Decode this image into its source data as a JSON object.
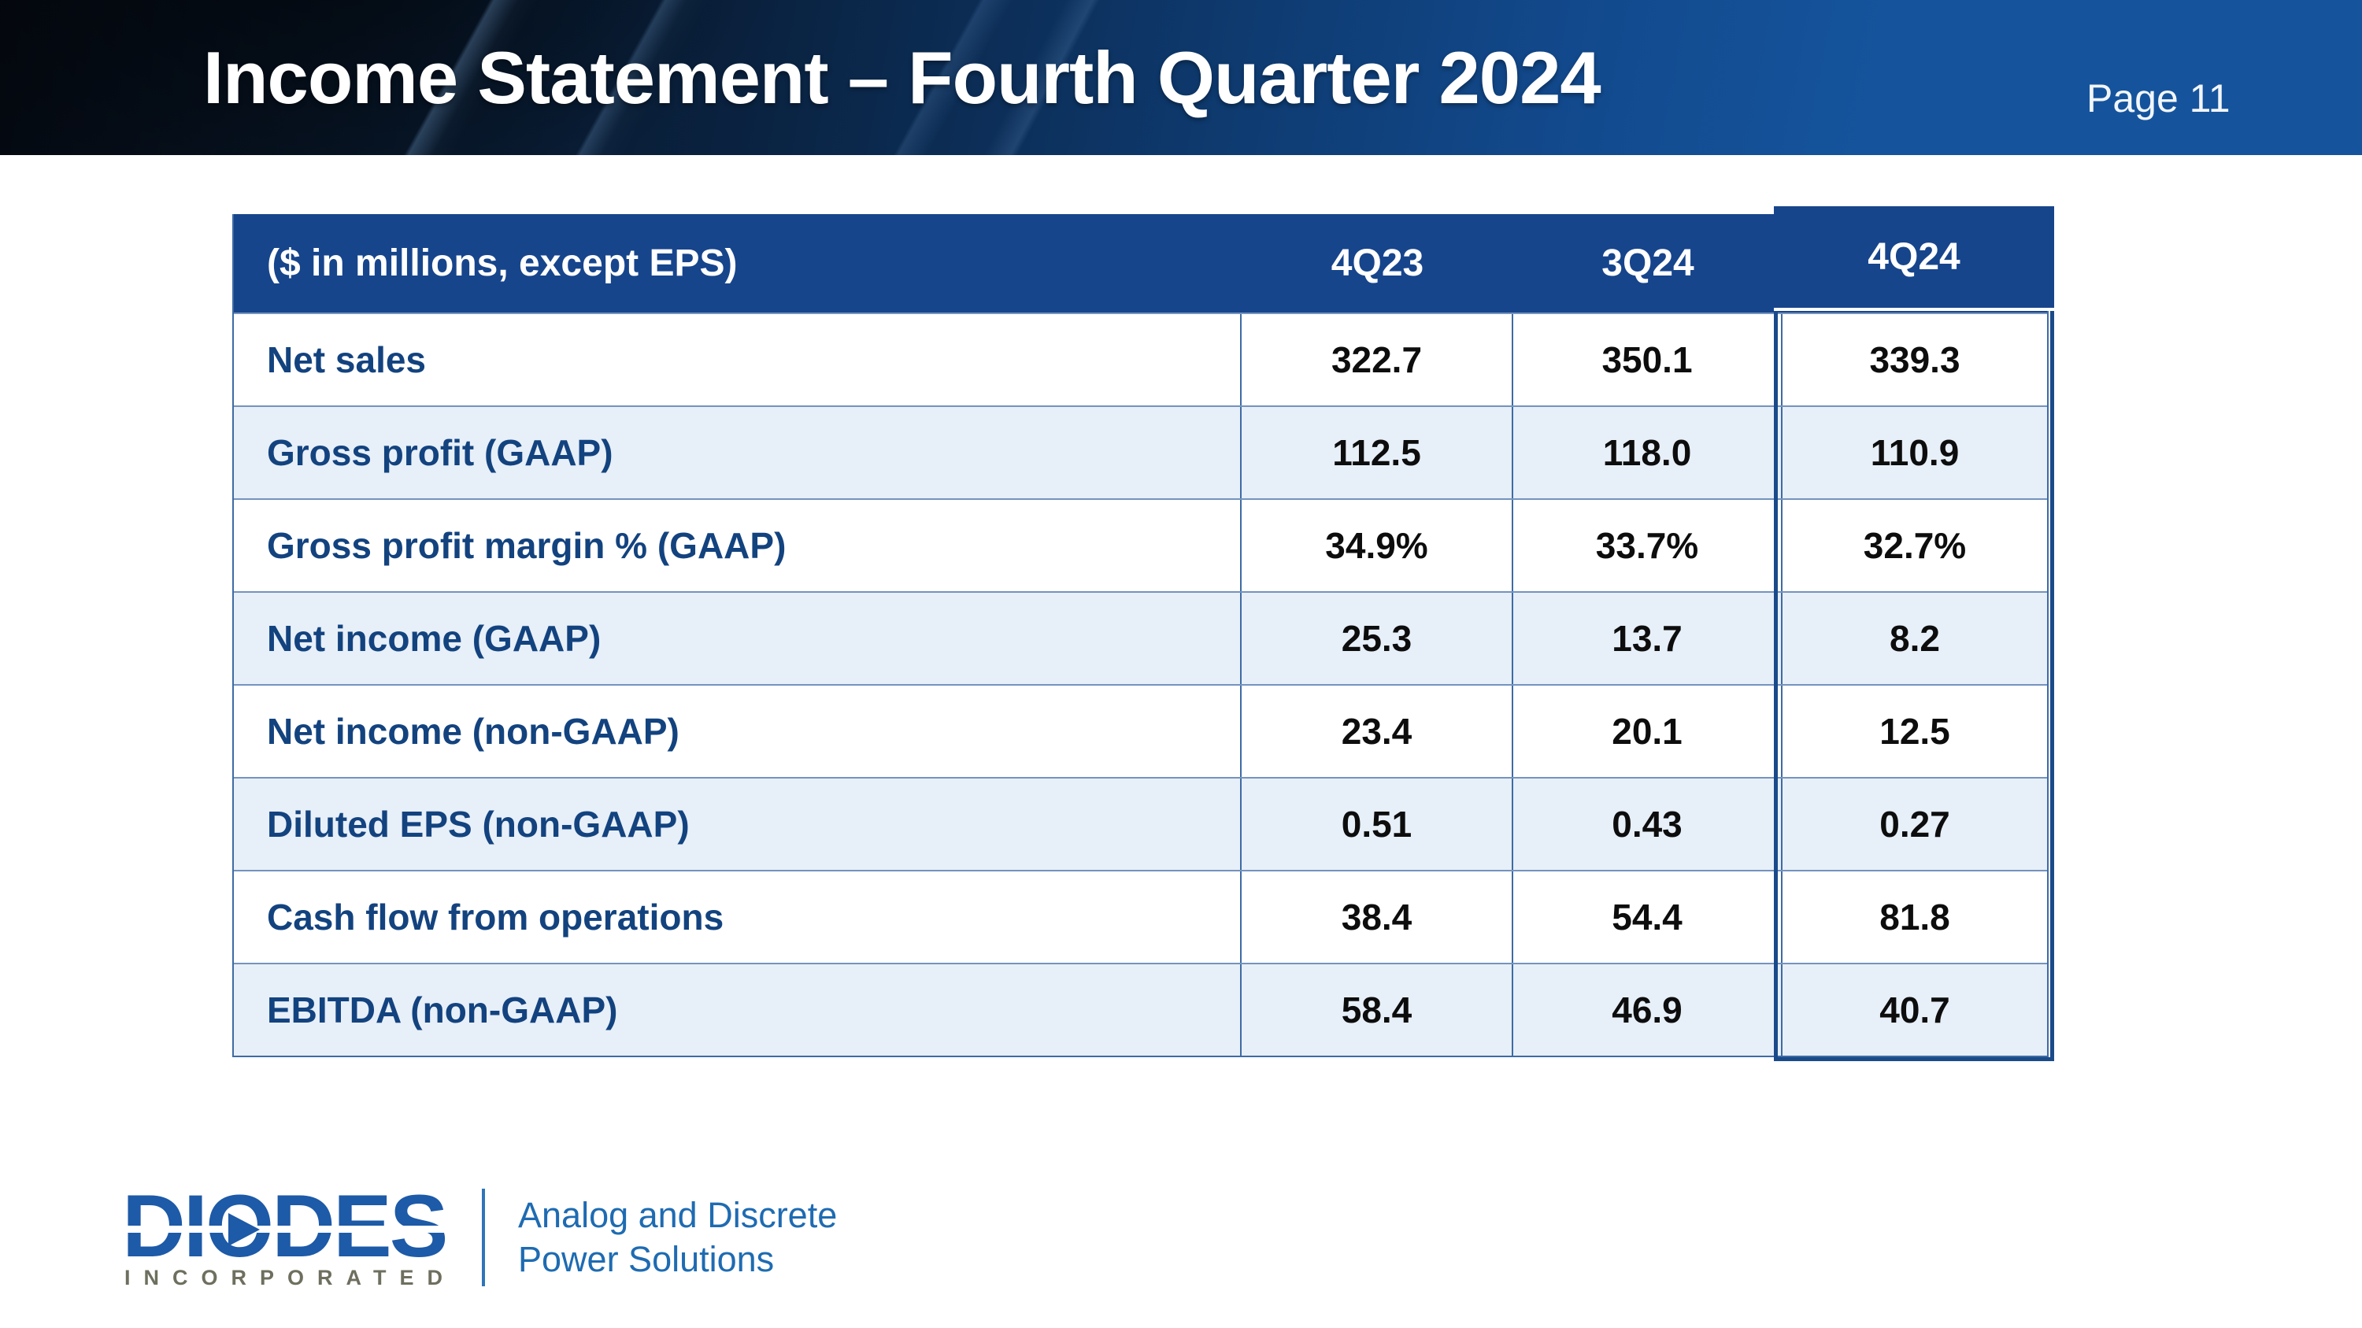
{
  "slide": {
    "title": "Income Statement – Fourth Quarter 2024",
    "page_label": "Page 11"
  },
  "table": {
    "unit_label": "($ in millions, except EPS)",
    "columns": [
      "4Q23",
      "3Q24",
      "4Q24"
    ],
    "highlight_column": "4Q24",
    "rows": [
      {
        "label": "Net sales",
        "values": [
          "322.7",
          "350.1",
          "339.3"
        ]
      },
      {
        "label": "Gross profit (GAAP)",
        "values": [
          "112.5",
          "118.0",
          "110.9"
        ]
      },
      {
        "label": "Gross profit margin % (GAAP)",
        "values": [
          "34.9%",
          "33.7%",
          "32.7%"
        ]
      },
      {
        "label": "Net income (GAAP)",
        "values": [
          "25.3",
          "13.7",
          "8.2"
        ]
      },
      {
        "label": "Net income (non-GAAP)",
        "values": [
          "23.4",
          "20.1",
          "12.5"
        ]
      },
      {
        "label": "Diluted EPS (non-GAAP)",
        "values": [
          "0.51",
          "0.43",
          "0.27"
        ]
      },
      {
        "label": "Cash flow from operations",
        "values": [
          "38.4",
          "54.4",
          "81.8"
        ]
      },
      {
        "label": "EBITDA (non-GAAP)",
        "values": [
          "58.4",
          "46.9",
          "40.7"
        ]
      }
    ]
  },
  "footer": {
    "logo_text": "DIODES",
    "logo_subtext": "INCORPORATED",
    "tagline_line1": "Analog and Discrete",
    "tagline_line2": "Power Solutions"
  },
  "colors": {
    "banner_blue": "#15549d",
    "table_header_bg": "#17458c",
    "row_alt_bg": "#e7eff8",
    "row_label_text": "#13437f",
    "value_text": "#0d0d0d",
    "highlight_border": "#1a4a89",
    "logo_blue": "#1d5aa8",
    "incorporated_gray": "#6e6f5e",
    "tagline_blue": "#1e6bb2"
  }
}
